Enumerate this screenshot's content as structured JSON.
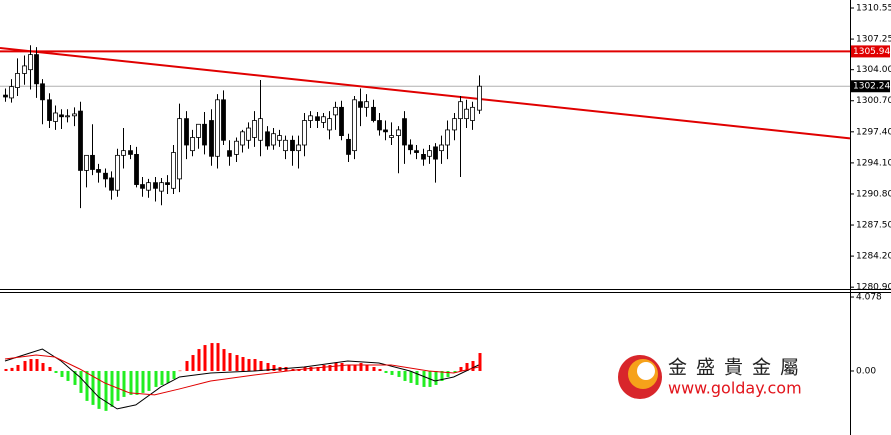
{
  "chart_data": [
    {
      "type": "candlestick",
      "open": [
        1301.3,
        1301.0,
        1302.1,
        1303.6,
        1304.0,
        1305.6,
        1302.5,
        1300.8,
        1298.5,
        1299.2,
        1299.0,
        1299.1,
        1299.6,
        1293.3,
        1294.9,
        1293.4,
        1293.0,
        1292.5,
        1291.2,
        1294.9,
        1295.4,
        1295.0,
        1291.8,
        1291.2,
        1292.0,
        1291.1,
        1292.0,
        1291.4,
        1292.4,
        1298.8,
        1295.4,
        1296.8,
        1298.2,
        1298.6,
        1294.8,
        1300.8,
        1295.4,
        1295.0,
        1296.0,
        1296.5,
        1296.8,
        1296.5,
        1297.4,
        1296.0,
        1296.5,
        1295.4,
        1296.5,
        1295.4,
        1296.0,
        1298.6,
        1299.0,
        1298.4,
        1297.6,
        1299.2,
        1300.0,
        1296.6,
        1295.4,
        1300.6,
        1300.0,
        1300.0,
        1298.6,
        1297.6,
        1296.8,
        1297.0,
        1298.8,
        1296.0,
        1295.4,
        1295.0,
        1294.8,
        1295.8,
        1295.4,
        1296.0,
        1297.6,
        1298.8,
        1298.8,
        1298.6,
        1299.7
      ],
      "high": [
        1302.0,
        1303.0,
        1305.2,
        1305.5,
        1306.6,
        1306.4,
        1303.0,
        1301.5,
        1300.2,
        1299.8,
        1299.8,
        1300.0,
        1300.6,
        1294.8,
        1298.2,
        1294.0,
        1293.5,
        1293.2,
        1295.6,
        1297.8,
        1296.0,
        1295.8,
        1292.6,
        1292.4,
        1292.6,
        1292.5,
        1292.8,
        1296.0,
        1300.4,
        1299.6,
        1297.6,
        1298.2,
        1299.5,
        1299.8,
        1301.4,
        1301.8,
        1296.5,
        1296.8,
        1297.6,
        1298.4,
        1299.6,
        1302.9,
        1298.0,
        1297.8,
        1297.6,
        1297.0,
        1297.0,
        1297.0,
        1299.4,
        1299.6,
        1299.5,
        1299.4,
        1299.6,
        1300.6,
        1300.7,
        1297.2,
        1301.2,
        1302.0,
        1301.4,
        1300.8,
        1299.4,
        1298.6,
        1298.4,
        1298.0,
        1299.6,
        1296.6,
        1296.0,
        1295.6,
        1296.0,
        1296.2,
        1297.0,
        1298.6,
        1299.4,
        1301.2,
        1300.8,
        1300.6,
        1303.4
      ],
      "low": [
        1300.6,
        1300.5,
        1301.2,
        1302.4,
        1301.9,
        1301.0,
        1298.2,
        1297.8,
        1297.6,
        1297.7,
        1298.4,
        1298.0,
        1289.3,
        1291.5,
        1292.8,
        1292.0,
        1291.5,
        1290.2,
        1290.5,
        1293.5,
        1294.5,
        1291.5,
        1290.5,
        1290.4,
        1290.0,
        1289.6,
        1290.8,
        1290.8,
        1291.0,
        1294.5,
        1294.8,
        1295.6,
        1295.0,
        1293.8,
        1293.5,
        1296.0,
        1293.8,
        1294.2,
        1295.2,
        1295.6,
        1295.8,
        1294.8,
        1295.5,
        1295.5,
        1295.8,
        1294.5,
        1293.8,
        1293.5,
        1294.8,
        1297.8,
        1297.8,
        1297.8,
        1296.6,
        1297.6,
        1296.5,
        1294.2,
        1294.5,
        1298.0,
        1299.0,
        1298.4,
        1297.0,
        1296.5,
        1296.0,
        1293.0,
        1294.0,
        1295.0,
        1294.5,
        1293.8,
        1294.0,
        1292.0,
        1294.0,
        1294.5,
        1296.5,
        1292.6,
        1297.8,
        1297.6,
        1299.3
      ],
      "close": [
        1301.1,
        1302.2,
        1303.6,
        1304.4,
        1305.6,
        1302.5,
        1300.8,
        1298.6,
        1299.4,
        1299.0,
        1299.1,
        1299.3,
        1293.3,
        1294.9,
        1293.4,
        1293.1,
        1292.4,
        1291.2,
        1294.9,
        1295.4,
        1295.0,
        1291.8,
        1291.4,
        1292.0,
        1291.4,
        1292.0,
        1291.8,
        1295.2,
        1298.8,
        1296.0,
        1296.8,
        1298.2,
        1296.0,
        1294.8,
        1300.8,
        1296.5,
        1294.8,
        1296.4,
        1297.4,
        1297.8,
        1298.6,
        1298.8,
        1295.9,
        1297.2,
        1297.0,
        1296.5,
        1295.4,
        1296.0,
        1298.6,
        1299.1,
        1298.6,
        1299.0,
        1298.8,
        1300.0,
        1297.0,
        1295.0,
        1300.8,
        1300.0,
        1300.6,
        1298.6,
        1297.6,
        1297.4,
        1297.0,
        1297.6,
        1296.0,
        1295.5,
        1295.2,
        1294.5,
        1295.4,
        1294.5,
        1296.0,
        1297.6,
        1298.8,
        1300.6,
        1299.8,
        1300.0,
        1302.24
      ],
      "xlim": [
        -0.8,
        135.6
      ],
      "ylim": [
        1280.6,
        1311.4
      ],
      "yticks": [
        1310.55,
        1307.25,
        {
          "value": 1304,
          "label": "1304.00"
        },
        {
          "value": 1300.7,
          "label": "1300.70"
        },
        {
          "value": 1297.4,
          "label": "1297.40"
        },
        {
          "value": 1294.1,
          "label": "1294.10"
        },
        {
          "value": 1290.8,
          "label": "1290.80"
        },
        {
          "value": 1287.5,
          "label": "1287.50"
        },
        {
          "value": 1284.2,
          "label": "1284.20"
        },
        {
          "value": 1280.9,
          "label": "1280.90"
        }
      ],
      "levels": [
        {
          "value": 1305.94,
          "color": "#e00000"
        },
        {
          "value": 1302.24,
          "color": "#b0b0b0"
        }
      ],
      "trendline": {
        "x": [
          -0.8,
          135.6
        ],
        "values": [
          1306.3,
          1296.7
        ],
        "color": "#e00000"
      }
    },
    {
      "type": "macd",
      "histogram": {
        "values": [
          0.11,
          0.17,
          0.33,
          0.55,
          0.66,
          0.66,
          0.44,
          0.22,
          -0.11,
          -0.33,
          -0.55,
          -0.77,
          -1.21,
          -1.65,
          -1.87,
          -2.09,
          -2.2,
          -1.98,
          -1.65,
          -1.43,
          -1.32,
          -1.32,
          -1.21,
          -1.1,
          -0.88,
          -0.77,
          -0.66,
          -0.44,
          0.02,
          0.55,
          0.88,
          1.21,
          1.43,
          1.54,
          1.54,
          1.21,
          0.99,
          0.88,
          0.77,
          0.66,
          0.66,
          0.55,
          0.44,
          0.33,
          0.22,
          0.22,
          0.11,
          0.11,
          0.22,
          0.22,
          0.22,
          0.33,
          0.33,
          0.44,
          0.44,
          0.33,
          0.33,
          0.44,
          0.33,
          0.22,
          0.11,
          -0.11,
          -0.22,
          -0.33,
          -0.55,
          -0.66,
          -0.77,
          -0.88,
          -0.88,
          -0.77,
          -0.55,
          -0.33,
          -0.11,
          0.22,
          0.44,
          0.55,
          0.99
        ],
        "up_color": "#ff0000",
        "down_color": "#22ee22"
      },
      "series": [
        {
          "color": "#000000",
          "x": [
            0,
            4,
            6,
            9,
            12,
            15,
            18,
            21,
            25,
            28,
            33,
            40,
            48,
            55,
            60,
            65,
            69,
            72,
            76
          ],
          "values": [
            0.55,
            0.99,
            1.21,
            0.55,
            -0.33,
            -1.43,
            -2.09,
            -1.87,
            -0.88,
            -0.33,
            -0.11,
            0,
            0.22,
            0.55,
            0.44,
            0,
            -0.55,
            -0.33,
            0.33
          ]
        },
        {
          "color": "#e00000",
          "x": [
            0,
            5,
            8,
            12,
            16,
            20,
            24,
            28,
            33,
            40,
            48,
            55,
            62,
            68,
            72,
            76
          ],
          "values": [
            0.66,
            0.88,
            0.77,
            0.11,
            -0.66,
            -1.21,
            -1.32,
            -0.99,
            -0.55,
            -0.22,
            0.11,
            0.33,
            0.33,
            0,
            -0.11,
            0.22
          ]
        }
      ],
      "xlim": [
        -0.8,
        135.6
      ],
      "ylim": [
        -3.53,
        4.3
      ],
      "yticks": [
        4.078,
        {
          "value": 0,
          "label": "0.00"
        }
      ]
    }
  ],
  "logo": {
    "name": "金盛貴金屬",
    "url": "www.golday.com"
  }
}
